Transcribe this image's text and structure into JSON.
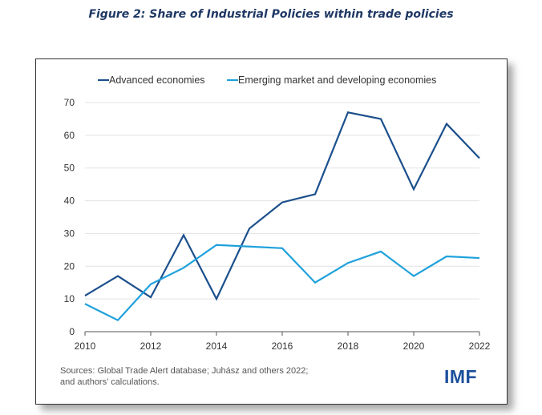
{
  "figure": {
    "title": "Figure 2: Share of Industrial Policies within trade policies",
    "source_line1": "Sources: Global Trade Alert database; Juhász and others 2022;",
    "source_line2": "and authors’ calculations.",
    "logo": "IMF"
  },
  "colors": {
    "advanced": "#1b4f8c",
    "emerging": "#1ea1dc",
    "grid": "#e3e3e3",
    "axis": "#555555"
  },
  "chart_data": {
    "type": "line",
    "title": "",
    "xlabel": "",
    "ylabel": "",
    "x": [
      2010,
      2011,
      2012,
      2013,
      2014,
      2015,
      2016,
      2017,
      2018,
      2019,
      2020,
      2021,
      2022
    ],
    "xticks": [
      "2010",
      "2012",
      "2014",
      "2016",
      "2018",
      "2020",
      "2022"
    ],
    "yticks": [
      "0",
      "10",
      "20",
      "30",
      "40",
      "50",
      "60",
      "70"
    ],
    "xlim": [
      2010,
      2022
    ],
    "ylim": [
      0,
      70
    ],
    "grid": true,
    "legend_position": "top",
    "series": [
      {
        "name": "Advanced economies",
        "values": [
          11,
          17,
          10.5,
          29.5,
          10,
          31.5,
          39.5,
          42,
          67,
          65,
          43.5,
          63.5,
          53
        ]
      },
      {
        "name": "Emerging market and developing economies",
        "values": [
          8.5,
          3.5,
          14.5,
          19.5,
          26.5,
          26,
          25.5,
          15,
          21,
          24.5,
          17,
          23,
          22.5
        ]
      }
    ]
  }
}
